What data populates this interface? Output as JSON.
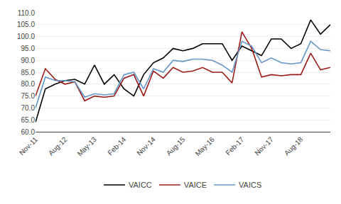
{
  "chart_data": {
    "type": "line",
    "categories": [
      "Nov-11",
      null,
      null,
      "Aug-12",
      null,
      null,
      "May-13",
      null,
      null,
      "Feb-14",
      null,
      null,
      "Nov-14",
      null,
      null,
      "Aug-15",
      null,
      null,
      "May-16",
      null,
      null,
      "Feb-17",
      null,
      null,
      "Nov-17",
      null,
      null,
      "Aug-18",
      null,
      null,
      null
    ],
    "series": [
      {
        "name": "VAICC",
        "color": "#000000",
        "values": [
          64.0,
          78.0,
          80.0,
          81.5,
          82.0,
          80.0,
          88.0,
          80.0,
          84.0,
          78.0,
          75.0,
          84.0,
          89.0,
          91.0,
          95.0,
          94.0,
          95.0,
          97.0,
          97.0,
          97.0,
          90.0,
          96.0,
          94.0,
          92.0,
          99.0,
          99.0,
          95.0,
          97.0,
          107.0,
          101.0,
          105.0
        ]
      },
      {
        "name": "VAICE",
        "color": "#9b1b1b",
        "values": [
          75.0,
          86.5,
          82.0,
          80.0,
          81.0,
          73.0,
          75.0,
          74.5,
          75.0,
          82.5,
          84.0,
          75.0,
          85.5,
          82.5,
          87.0,
          85.0,
          85.5,
          87.0,
          85.0,
          85.0,
          80.5,
          102.0,
          95.0,
          83.0,
          84.0,
          83.5,
          84.0,
          84.0,
          93.0,
          86.0,
          87.0
        ]
      },
      {
        "name": "VAICS",
        "color": "#6496c8",
        "values": [
          70.0,
          83.0,
          81.5,
          81.5,
          81.0,
          74.5,
          76.0,
          75.5,
          76.0,
          84.0,
          85.0,
          78.0,
          86.5,
          85.0,
          90.0,
          89.5,
          90.5,
          90.5,
          90.0,
          88.0,
          85.0,
          98.0,
          96.0,
          89.0,
          91.0,
          89.0,
          88.5,
          89.0,
          98.0,
          94.5,
          94.0
        ]
      }
    ],
    "ylim": [
      60,
      110
    ],
    "yticks": [
      {
        "value": 60,
        "label": "60.0"
      },
      {
        "value": 65,
        "label": "65.0"
      },
      {
        "value": 70,
        "label": "70.0"
      },
      {
        "value": 75,
        "label": "75.0"
      },
      {
        "value": 80,
        "label": "80.0"
      },
      {
        "value": 85,
        "label": "85.0"
      },
      {
        "value": 90,
        "label": "90.0"
      },
      {
        "value": 95,
        "label": "95.0"
      },
      {
        "value": 100,
        "label": "100.0"
      },
      {
        "value": 105,
        "label": "105.0"
      },
      {
        "value": 110,
        "label": "110.0"
      }
    ],
    "grid": true,
    "legend": "bottom"
  }
}
